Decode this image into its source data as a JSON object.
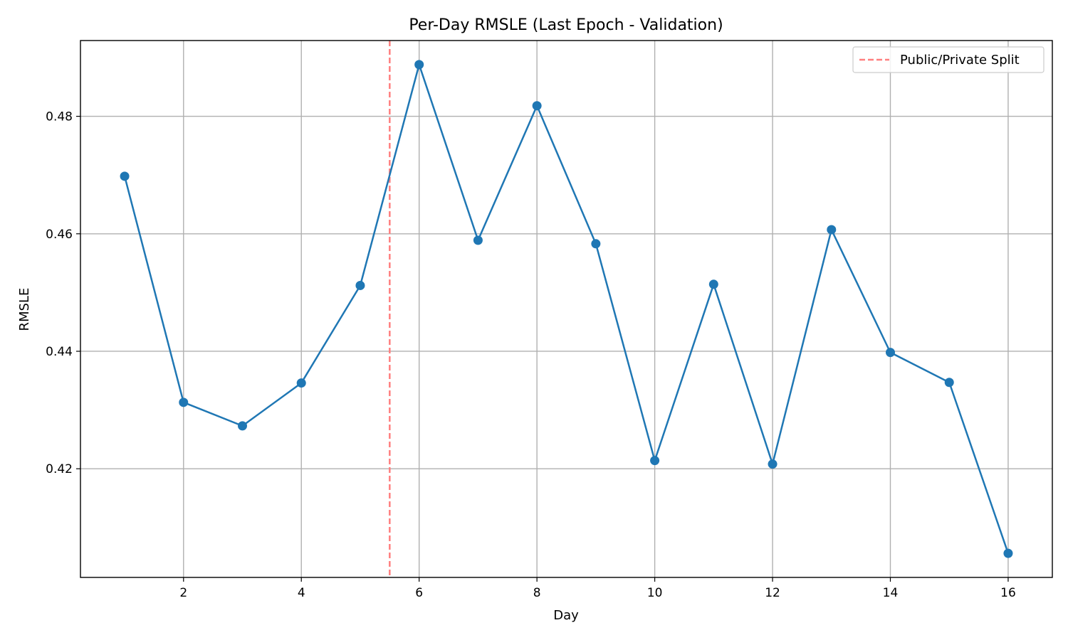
{
  "chart_data": {
    "type": "line",
    "title": "Per-Day RMSLE (Last Epoch - Validation)",
    "xlabel": "Day",
    "ylabel": "RMSLE",
    "x": [
      1,
      2,
      3,
      4,
      5,
      6,
      7,
      8,
      9,
      10,
      11,
      12,
      13,
      14,
      15,
      16
    ],
    "series": [
      {
        "values": [
          0.4698,
          0.4313,
          0.4273,
          0.4346,
          0.4512,
          0.4888,
          0.4589,
          0.4818,
          0.4583,
          0.4214,
          0.4514,
          0.4208,
          0.4607,
          0.4398,
          0.4347,
          0.4056
        ],
        "color": "#1f77b4",
        "marker": "circle"
      }
    ],
    "reference_lines": [
      {
        "orientation": "vertical",
        "x": 5.5,
        "label": "Public/Private Split",
        "color": "#ff7f7f",
        "style": "dashed"
      }
    ],
    "xlim": [
      0.25,
      16.75
    ],
    "ylim": [
      0.4015,
      0.4929
    ],
    "xticks": [
      2,
      4,
      6,
      8,
      10,
      12,
      14,
      16
    ],
    "yticks": [
      0.42,
      0.44,
      0.46,
      0.48
    ],
    "ytick_labels": [
      "0.42",
      "0.44",
      "0.46",
      "0.48"
    ],
    "grid": true,
    "legend": {
      "position": "top-right",
      "entries": [
        "Public/Private Split"
      ]
    }
  }
}
